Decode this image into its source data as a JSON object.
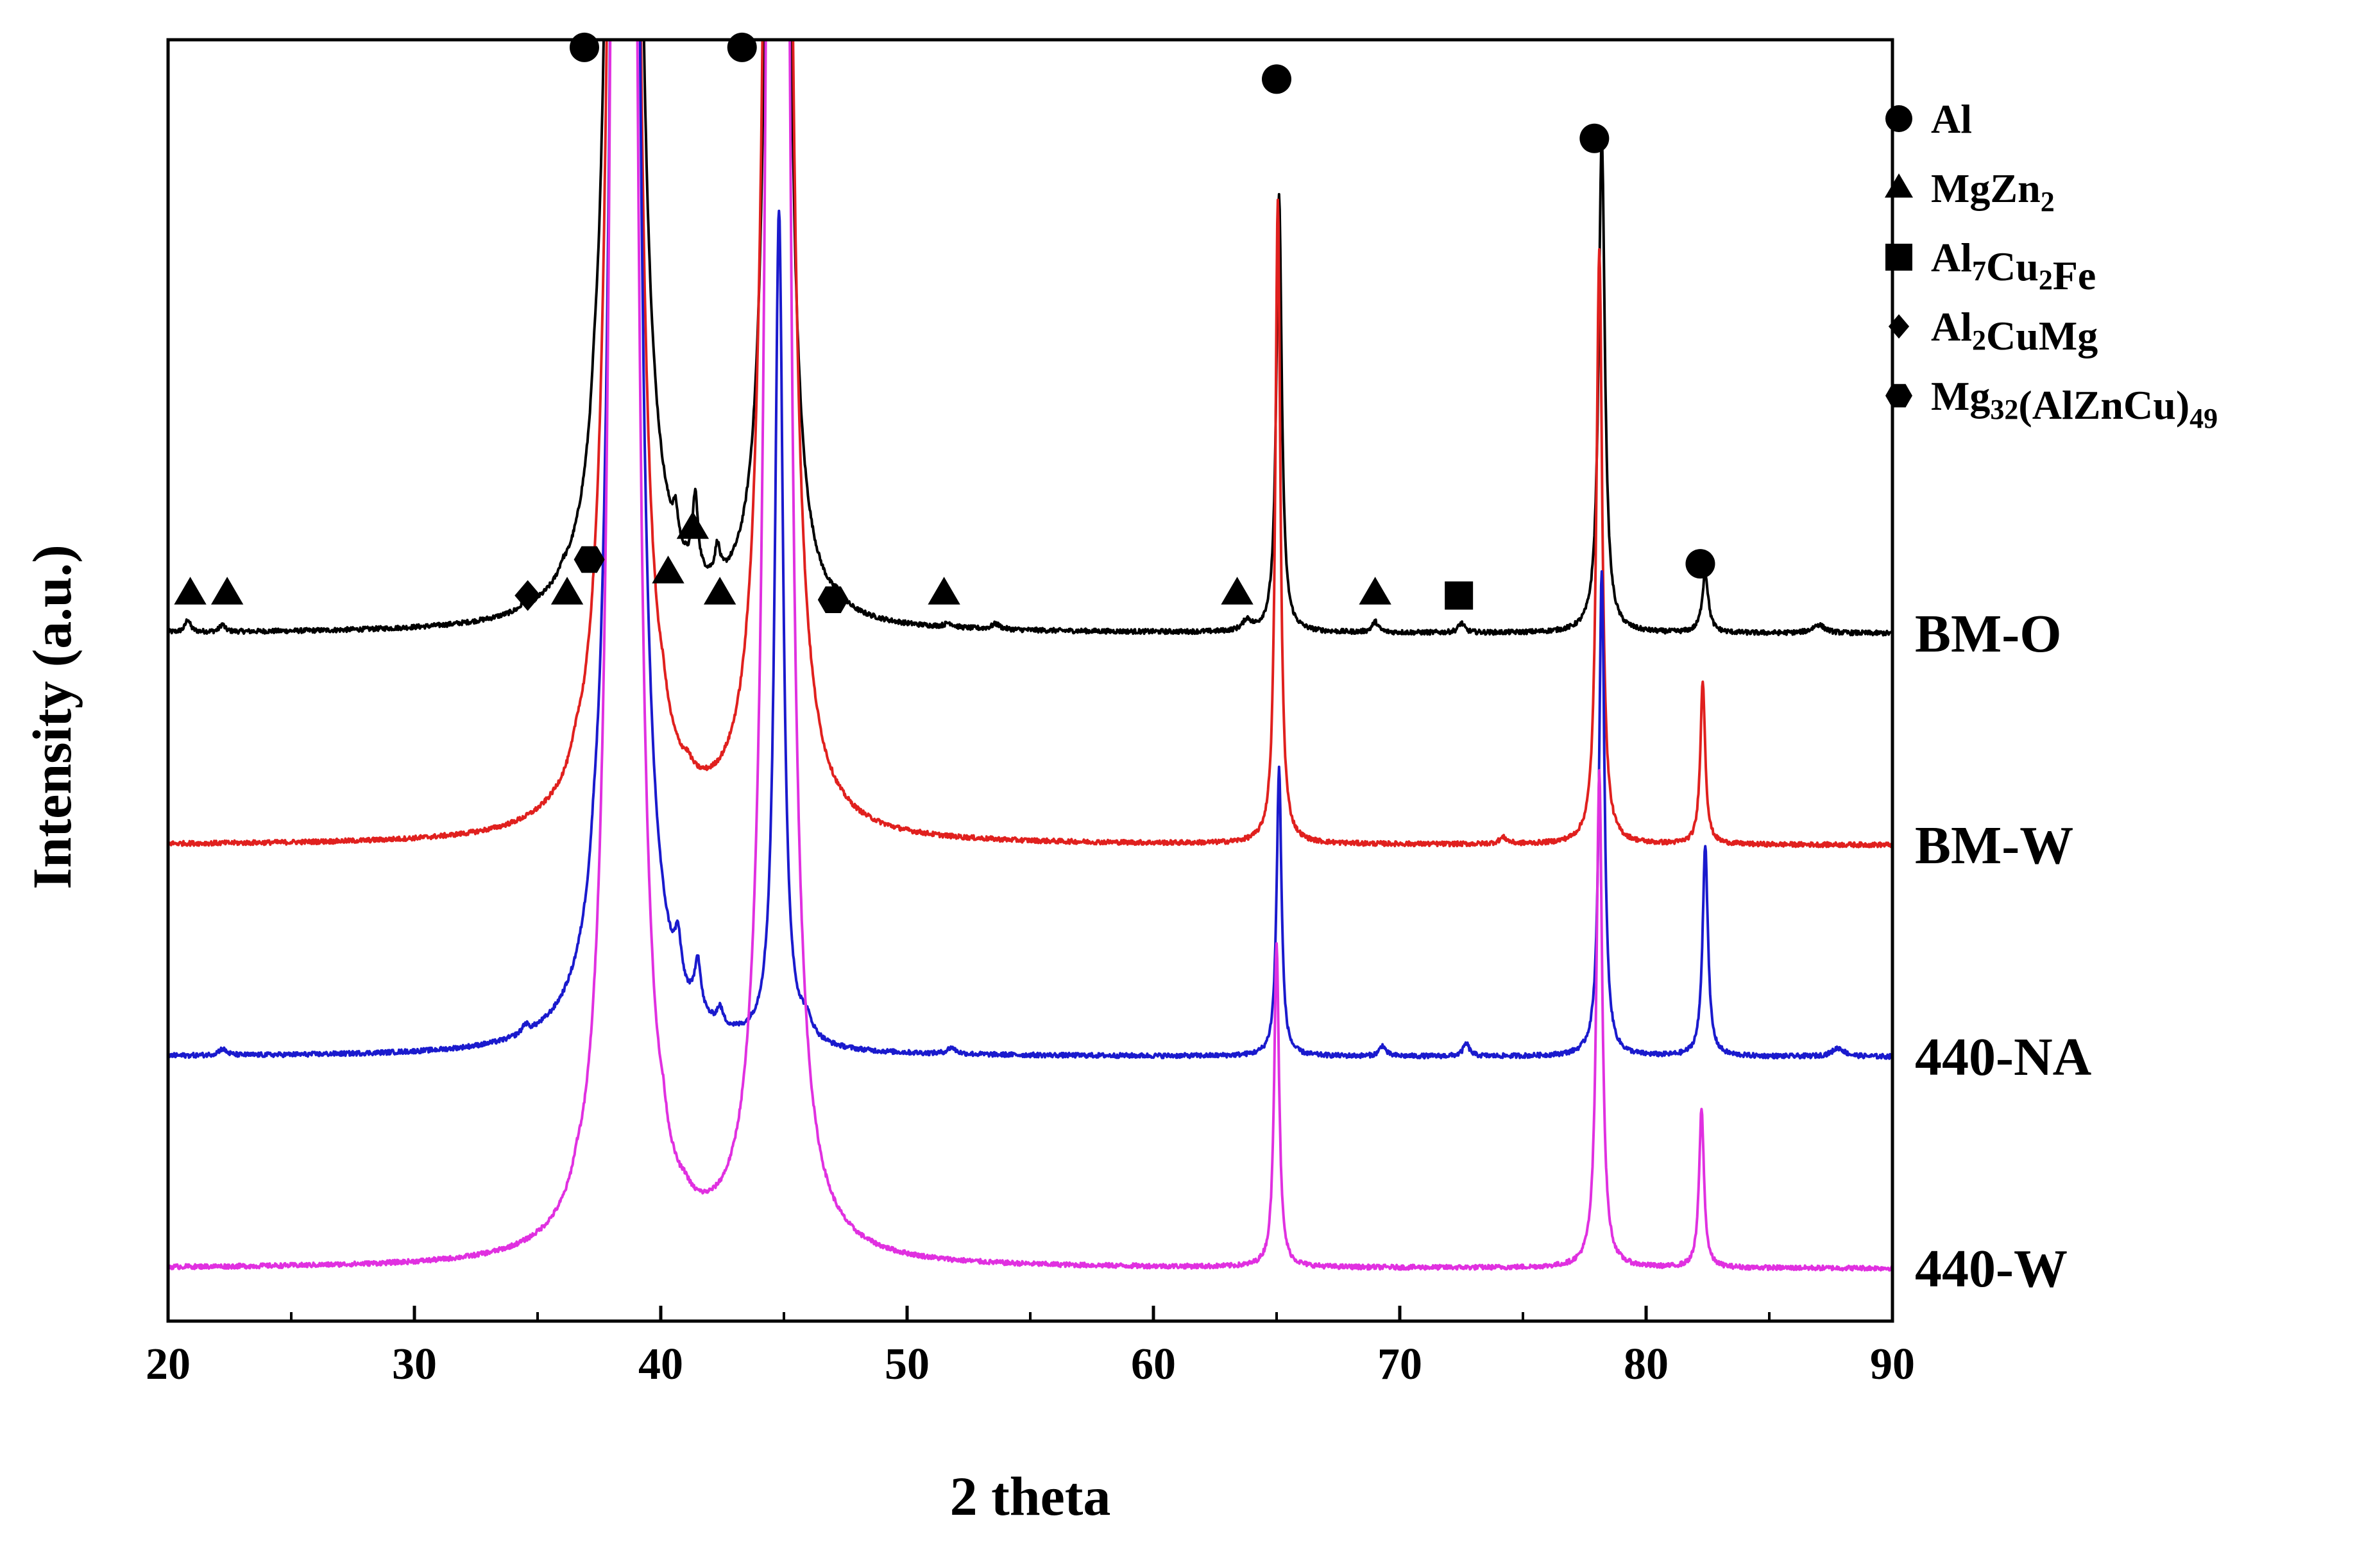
{
  "chart_data": {
    "type": "line",
    "title": "",
    "xlabel": "2 theta",
    "ylabel": "Intensity (a.u.)",
    "xlim": [
      20,
      90
    ],
    "xticks": [
      20,
      30,
      40,
      50,
      60,
      70,
      80,
      90
    ],
    "yticks": "none",
    "grid": false,
    "legend_position": "top-right",
    "legend": [
      {
        "marker": "circle",
        "base": "Al",
        "parts": [
          {
            "text": "Al",
            "sub": false
          }
        ]
      },
      {
        "marker": "triangle",
        "base": "MgZn2",
        "parts": [
          {
            "text": "MgZn",
            "sub": false
          },
          {
            "text": "2",
            "sub": true
          }
        ]
      },
      {
        "marker": "square",
        "base": "Al7Cu2Fe",
        "parts": [
          {
            "text": "Al",
            "sub": false
          },
          {
            "text": "7",
            "sub": true
          },
          {
            "text": "Cu",
            "sub": false
          },
          {
            "text": "2",
            "sub": true
          },
          {
            "text": "Fe",
            "sub": false
          }
        ]
      },
      {
        "marker": "diamond",
        "base": "Al2CuMg",
        "parts": [
          {
            "text": "Al",
            "sub": false
          },
          {
            "text": "2",
            "sub": true
          },
          {
            "text": "CuMg",
            "sub": false
          }
        ]
      },
      {
        "marker": "hexagon",
        "base": "Mg32(AlZnCu)49",
        "parts": [
          {
            "text": "Mg",
            "sub": false
          },
          {
            "text": "32",
            "sub": true
          },
          {
            "text": "(AlZnCu)",
            "sub": false
          },
          {
            "text": "49",
            "sub": true
          }
        ]
      }
    ],
    "series": [
      {
        "name": "BM-O",
        "color": "#000000",
        "baseline": 1.0,
        "peaks": [
          [
            38.5,
            60,
            0.18
          ],
          [
            44.75,
            24,
            0.2
          ],
          [
            65.1,
            2.08,
            0.13
          ],
          [
            78.2,
            2.35,
            0.15
          ],
          [
            82.4,
            0.28,
            0.15
          ],
          [
            20.8,
            0.06,
            0.12
          ],
          [
            22.2,
            0.035,
            0.12
          ],
          [
            34.5,
            0.03,
            0.15
          ],
          [
            36.0,
            0.03,
            0.15
          ],
          [
            37.3,
            0.08,
            0.12
          ],
          [
            40.6,
            0.14,
            0.12
          ],
          [
            41.4,
            0.36,
            0.13
          ],
          [
            42.3,
            0.14,
            0.12
          ],
          [
            47.2,
            0.03,
            0.2
          ],
          [
            51.7,
            0.02,
            0.2
          ],
          [
            53.6,
            0.025,
            0.2
          ],
          [
            63.8,
            0.05,
            0.2
          ],
          [
            69.0,
            0.05,
            0.15
          ],
          [
            72.5,
            0.045,
            0.15
          ],
          [
            87.0,
            0.04,
            0.3
          ]
        ]
      },
      {
        "name": "BM-W",
        "color": "#e0201e",
        "baseline": 0.0,
        "peaks": [
          [
            38.5,
            60,
            0.18
          ],
          [
            44.75,
            40,
            0.2
          ],
          [
            65.05,
            3.05,
            0.12
          ],
          [
            78.1,
            2.82,
            0.14
          ],
          [
            82.3,
            0.77,
            0.12
          ],
          [
            36.6,
            0.06,
            0.2
          ],
          [
            40.1,
            0.07,
            0.15
          ],
          [
            41.1,
            0.04,
            0.2
          ],
          [
            74.2,
            0.03,
            0.2
          ]
        ]
      },
      {
        "name": "440-NA",
        "color": "#1a1acd",
        "baseline": -1.0,
        "peaks": [
          [
            38.55,
            60,
            0.18
          ],
          [
            44.8,
            3.95,
            0.2
          ],
          [
            65.1,
            1.36,
            0.12
          ],
          [
            78.2,
            2.3,
            0.13
          ],
          [
            82.4,
            1.0,
            0.13
          ],
          [
            22.2,
            0.03,
            0.2
          ],
          [
            34.5,
            0.04,
            0.15
          ],
          [
            37.3,
            0.08,
            0.15
          ],
          [
            40.7,
            0.2,
            0.15
          ],
          [
            41.5,
            0.24,
            0.15
          ],
          [
            42.4,
            0.08,
            0.15
          ],
          [
            45.9,
            0.08,
            0.3
          ],
          [
            51.8,
            0.03,
            0.2
          ],
          [
            69.3,
            0.05,
            0.15
          ],
          [
            72.7,
            0.06,
            0.15
          ],
          [
            87.8,
            0.04,
            0.3
          ]
        ]
      },
      {
        "name": "440-W",
        "color": "#e030e0",
        "baseline": -2.0,
        "peaks": [
          [
            38.5,
            60,
            0.18
          ],
          [
            44.75,
            40,
            0.2
          ],
          [
            65.0,
            1.53,
            0.12
          ],
          [
            78.1,
            2.35,
            0.14
          ],
          [
            82.25,
            0.75,
            0.12
          ],
          [
            36.6,
            0.05,
            0.2
          ],
          [
            40.1,
            0.08,
            0.15
          ],
          [
            41.0,
            0.03,
            0.2
          ]
        ]
      }
    ],
    "phase_annotations": [
      {
        "phase": "Al",
        "marker": "circle",
        "x": 36.9,
        "y": 3.77
      },
      {
        "phase": "Al",
        "marker": "circle",
        "x": 43.3,
        "y": 3.77
      },
      {
        "phase": "Al",
        "marker": "circle",
        "x": 65.0,
        "y": 3.62
      },
      {
        "phase": "Al",
        "marker": "circle",
        "x": 77.9,
        "y": 3.34
      },
      {
        "phase": "Al",
        "marker": "circle",
        "x": 82.2,
        "y": 1.33
      },
      {
        "phase": "MgZn2",
        "marker": "triangle",
        "x": 20.9,
        "y": 1.19
      },
      {
        "phase": "MgZn2",
        "marker": "triangle",
        "x": 22.4,
        "y": 1.19
      },
      {
        "phase": "MgZn2",
        "marker": "triangle",
        "x": 36.2,
        "y": 1.19
      },
      {
        "phase": "MgZn2",
        "marker": "triangle",
        "x": 40.3,
        "y": 1.29
      },
      {
        "phase": "MgZn2",
        "marker": "triangle",
        "x": 41.3,
        "y": 1.5
      },
      {
        "phase": "MgZn2",
        "marker": "triangle",
        "x": 42.4,
        "y": 1.19
      },
      {
        "phase": "MgZn2",
        "marker": "triangle",
        "x": 51.5,
        "y": 1.19
      },
      {
        "phase": "MgZn2",
        "marker": "triangle",
        "x": 63.4,
        "y": 1.19
      },
      {
        "phase": "MgZn2",
        "marker": "triangle",
        "x": 69.0,
        "y": 1.19
      },
      {
        "phase": "Al7Cu2Fe",
        "marker": "square",
        "x": 72.4,
        "y": 1.18
      },
      {
        "phase": "Al2CuMg",
        "marker": "diamond",
        "x": 34.6,
        "y": 1.18
      },
      {
        "phase": "Mg32(AlZnCu)49",
        "marker": "hexagon",
        "x": 37.1,
        "y": 1.35
      },
      {
        "phase": "Mg32(AlZnCu)49",
        "marker": "hexagon",
        "x": 47.0,
        "y": 1.16
      }
    ]
  }
}
